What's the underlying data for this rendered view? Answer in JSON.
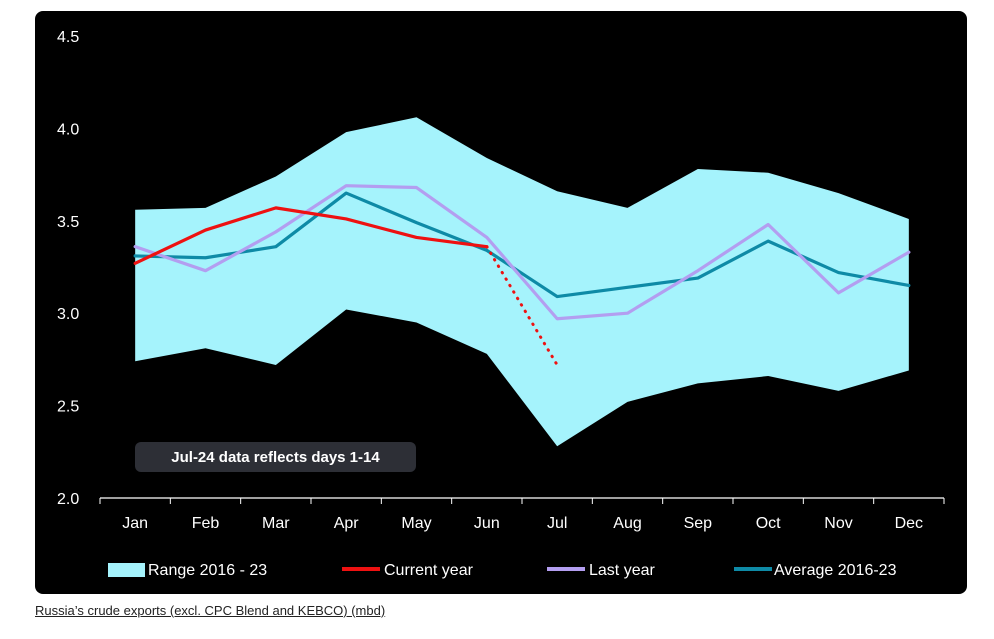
{
  "chart_data": {
    "type": "line",
    "categories": [
      "Jan",
      "Feb",
      "Mar",
      "Apr",
      "May",
      "Jun",
      "Jul",
      "Aug",
      "Sep",
      "Oct",
      "Nov",
      "Dec"
    ],
    "ylim": [
      2.0,
      4.5
    ],
    "yticks": [
      "2.0",
      "2.5",
      "3.0",
      "3.5",
      "4.0",
      "4.5"
    ],
    "range": {
      "name": "Range 2016 - 23",
      "color": "#a5f3fc",
      "upper": [
        3.56,
        3.57,
        3.74,
        3.98,
        4.06,
        3.84,
        3.66,
        3.57,
        3.78,
        3.76,
        3.65,
        3.51
      ],
      "lower": [
        2.74,
        2.81,
        2.72,
        3.02,
        2.95,
        2.78,
        2.28,
        2.52,
        2.62,
        2.66,
        2.58,
        2.69
      ]
    },
    "series": [
      {
        "name": "Current year",
        "color": "#ee1111",
        "values": [
          3.27,
          3.45,
          3.57,
          3.51,
          3.41,
          3.36,
          null,
          null,
          null,
          null,
          null,
          null
        ]
      },
      {
        "name": "Last year",
        "color": "#b39ef0",
        "values": [
          3.36,
          3.23,
          3.44,
          3.69,
          3.68,
          3.41,
          2.97,
          3.0,
          3.23,
          3.48,
          3.11,
          3.33
        ]
      },
      {
        "name": "Average 2016-23",
        "color": "#0e8aa6",
        "values": [
          3.31,
          3.3,
          3.36,
          3.65,
          3.49,
          3.34,
          3.09,
          3.14,
          3.19,
          3.39,
          3.22,
          3.15
        ]
      }
    ],
    "current_year_projection": {
      "from_month": "Jun",
      "to_month": "Jul",
      "from_value": 3.36,
      "to_value": 2.72,
      "style": "dotted"
    },
    "annotation": "Jul-24 data reflects days 1-14",
    "legend_position": "bottom"
  },
  "caption": "Russia’s crude exports (excl. CPC Blend and KEBCO) (mbd)"
}
